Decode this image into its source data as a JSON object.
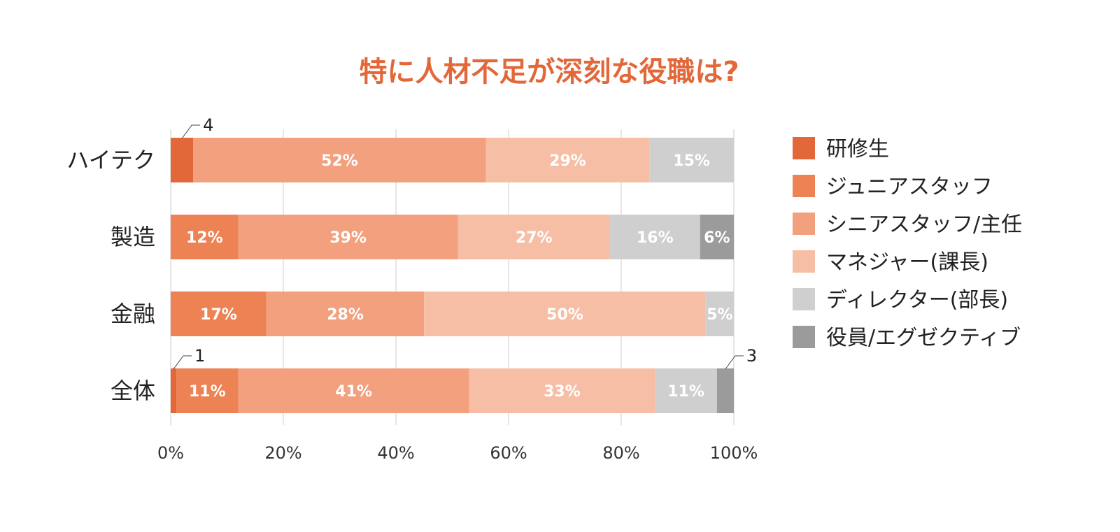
{
  "chart_data": {
    "type": "bar",
    "orientation": "horizontal",
    "stacked": true,
    "title": "特に人材不足が深刻な役職は?",
    "categories": [
      "ハイテク",
      "製造",
      "金融",
      "全体"
    ],
    "xlim": [
      0,
      100
    ],
    "x_ticks": [
      "0%",
      "20%",
      "40%",
      "60%",
      "80%",
      "100%"
    ],
    "grid": "vertical",
    "legend_position": "right",
    "series": [
      {
        "name": "研修生",
        "color": "#e2683a",
        "values": [
          4,
          0,
          0,
          1
        ],
        "labels": [
          "",
          "",
          "",
          ""
        ]
      },
      {
        "name": "ジュニアスタッフ",
        "color": "#ed8355",
        "values": [
          0,
          12,
          17,
          11
        ],
        "labels": [
          "",
          "12%",
          "17%",
          "11%"
        ]
      },
      {
        "name": "シニアスタッフ/主任",
        "color": "#f2a07d",
        "values": [
          52,
          39,
          28,
          41
        ],
        "labels": [
          "52%",
          "39%",
          "28%",
          "41%"
        ]
      },
      {
        "name": "マネジャー(課長)",
        "color": "#f7bea6",
        "values": [
          29,
          27,
          50,
          33
        ],
        "labels": [
          "29%",
          "27%",
          "50%",
          "33%"
        ]
      },
      {
        "name": "ディレクター(部長)",
        "color": "#cfcfcf",
        "values": [
          15,
          16,
          5,
          11
        ],
        "labels": [
          "15%",
          "16%",
          "5%",
          "11%"
        ]
      },
      {
        "name": "役員/エグゼクティブ",
        "color": "#9b9b9b",
        "values": [
          0,
          6,
          0,
          3
        ],
        "labels": [
          "",
          "6%",
          "",
          ""
        ]
      }
    ],
    "callouts": [
      {
        "category": "ハイテク",
        "series": "研修生",
        "text": "4"
      },
      {
        "category": "全体",
        "series": "研修生",
        "text": "1"
      },
      {
        "category": "全体",
        "series": "役員/エグゼクティブ",
        "text": "3"
      }
    ]
  }
}
